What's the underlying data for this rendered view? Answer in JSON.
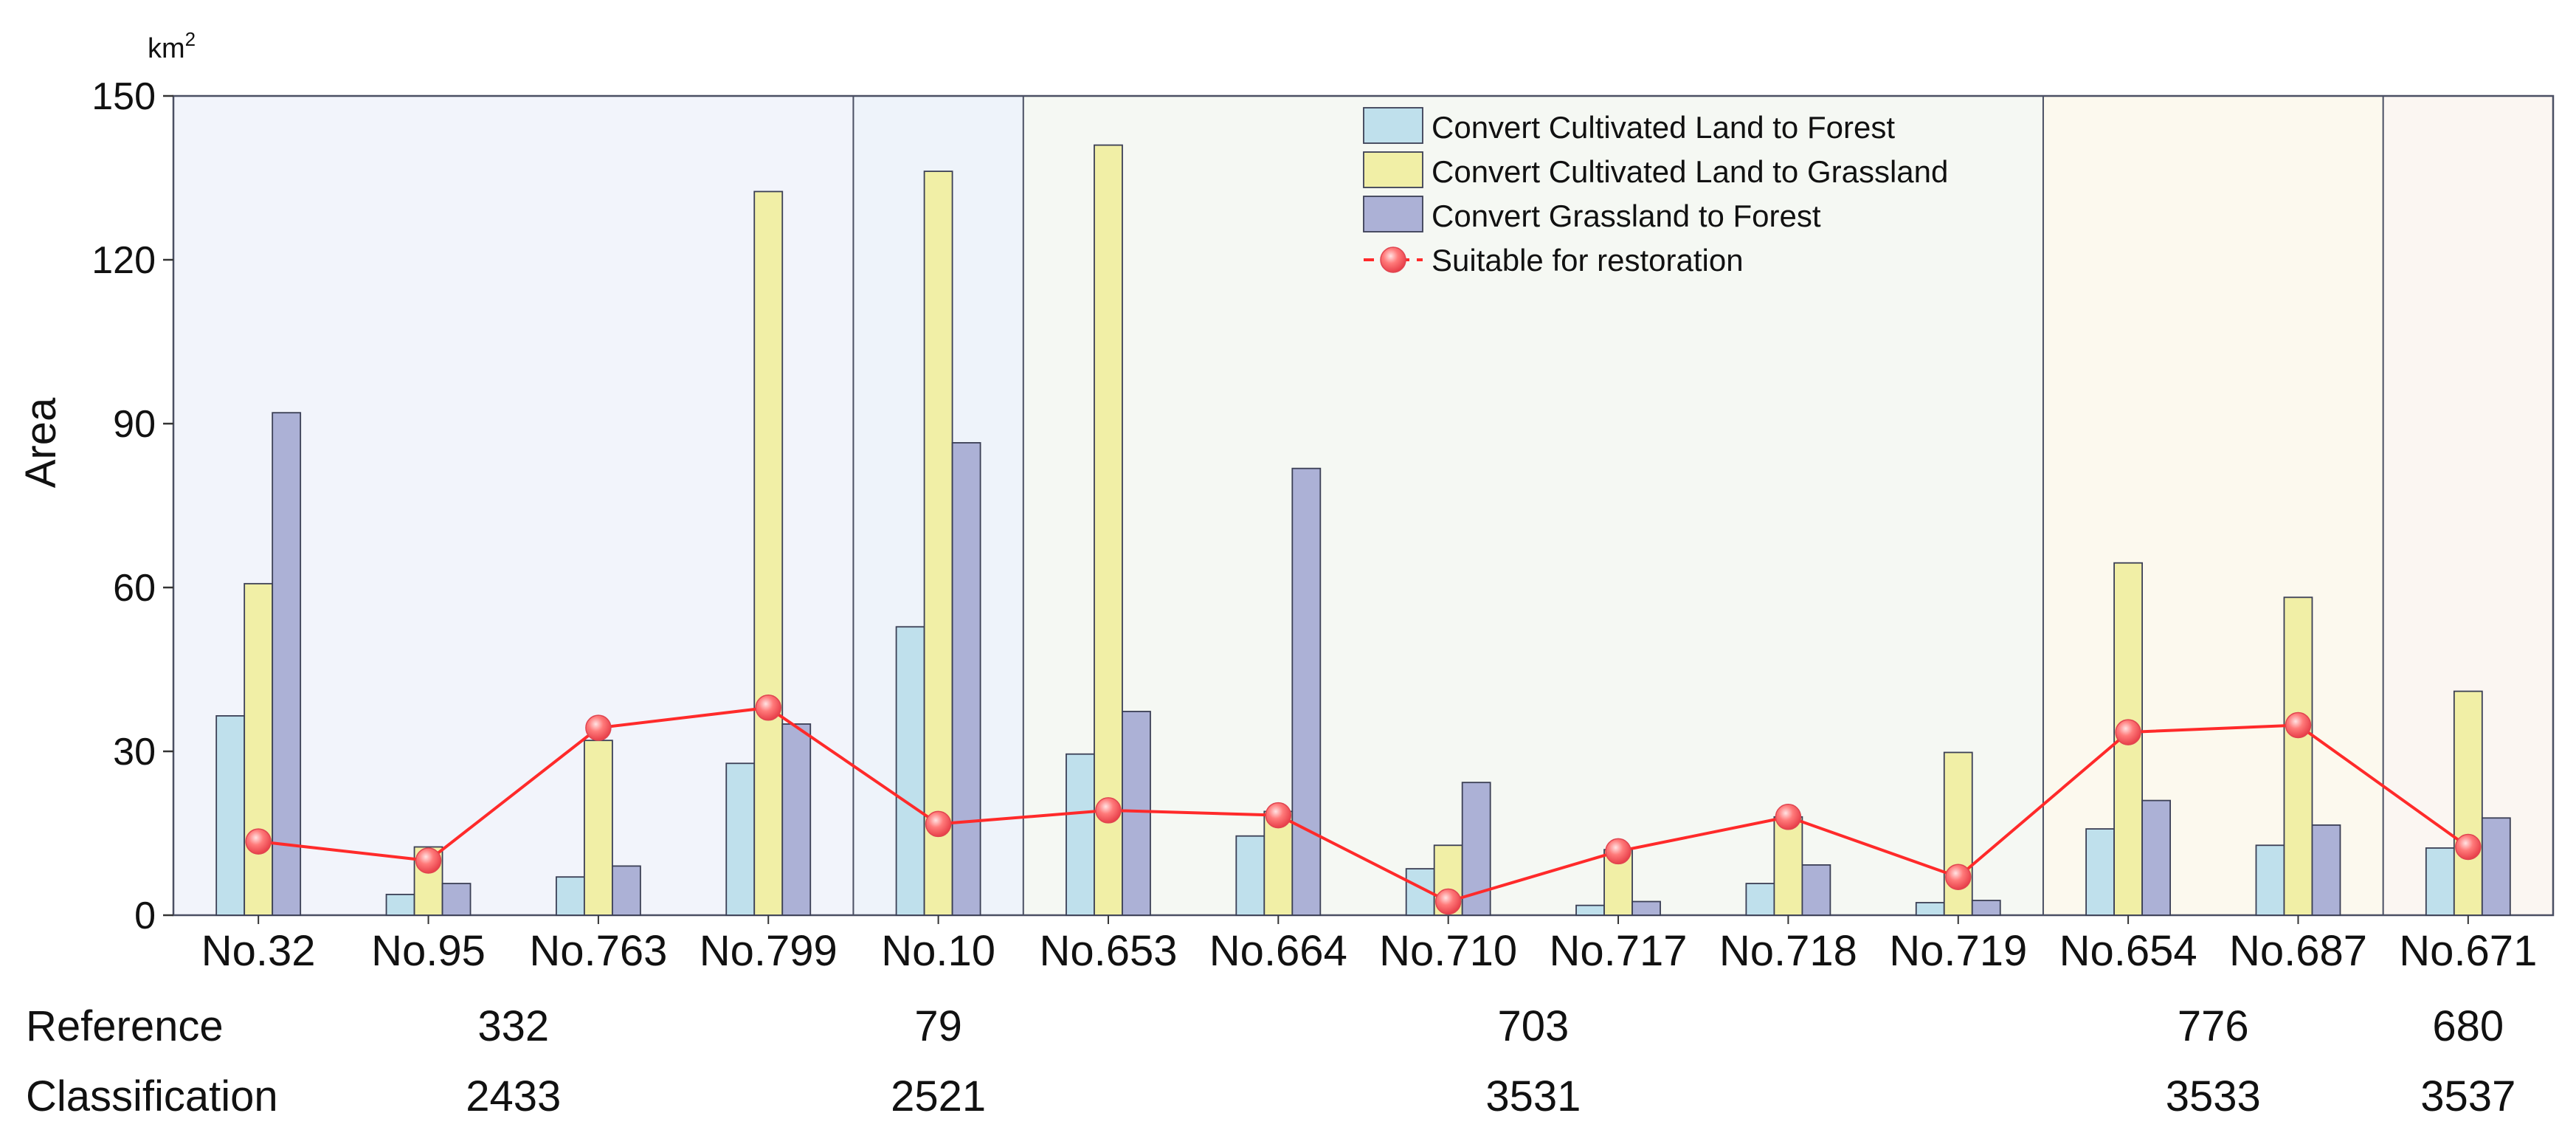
{
  "chart_data": {
    "type": "bar",
    "title": "",
    "ylabel": "Area",
    "unit": "km",
    "unit_sup": "2",
    "xlabel": "",
    "ylim": [
      0,
      150
    ],
    "yticks": [
      0,
      30,
      60,
      90,
      120,
      150
    ],
    "categories": [
      "No.32",
      "No.95",
      "No.763",
      "No.799",
      "No.10",
      "No.653",
      "No.664",
      "No.710",
      "No.717",
      "No.718",
      "No.719",
      "No.654",
      "No.687",
      "No.671"
    ],
    "series": [
      {
        "name": "Convert Cultivated Land to Forest",
        "kind": "bar",
        "color": "#bfe0ec",
        "values": [
          36.5,
          3.8,
          7.0,
          27.8,
          52.8,
          29.5,
          14.5,
          8.5,
          1.8,
          5.8,
          2.3,
          15.8,
          12.8,
          12.3
        ]
      },
      {
        "name": "Convert Cultivated Land to Grassland",
        "kind": "bar",
        "color": "#f1efa6",
        "values": [
          60.7,
          12.5,
          32.0,
          132.5,
          136.2,
          141.0,
          19.0,
          12.8,
          12.0,
          18.0,
          29.8,
          64.5,
          58.2,
          41.0
        ]
      },
      {
        "name": "Convert Grassland to Forest",
        "kind": "bar",
        "color": "#acb1d6",
        "values": [
          92.0,
          5.8,
          9.0,
          35.0,
          86.5,
          37.3,
          81.8,
          24.3,
          2.5,
          9.2,
          2.7,
          21.0,
          16.5,
          17.8
        ]
      },
      {
        "name": "Suitable for restoration",
        "kind": "line",
        "color": "#ff2a2a",
        "values": [
          13.5,
          10.0,
          34.3,
          38.0,
          16.7,
          19.2,
          18.3,
          2.5,
          11.7,
          18.0,
          7.0,
          33.5,
          34.8,
          12.5
        ]
      }
    ],
    "legend_position": "top-center",
    "regions": [
      {
        "reference": "332",
        "classification": "2433",
        "start": 0,
        "end": 3,
        "bg": "#f2f4fb"
      },
      {
        "reference": "79",
        "classification": "2521",
        "start": 4,
        "end": 4,
        "bg": "#eef3fa"
      },
      {
        "reference": "703",
        "classification": "3531",
        "start": 5,
        "end": 10,
        "bg": "#f5f8f3"
      },
      {
        "reference": "776",
        "classification": "3533",
        "start": 11,
        "end": 12,
        "bg": "#fcf9ee"
      },
      {
        "reference": "680",
        "classification": "3537",
        "start": 13,
        "end": 13,
        "bg": "#fbf6f2"
      }
    ],
    "row_labels": {
      "reference": "Reference",
      "classification": "Classification"
    }
  }
}
